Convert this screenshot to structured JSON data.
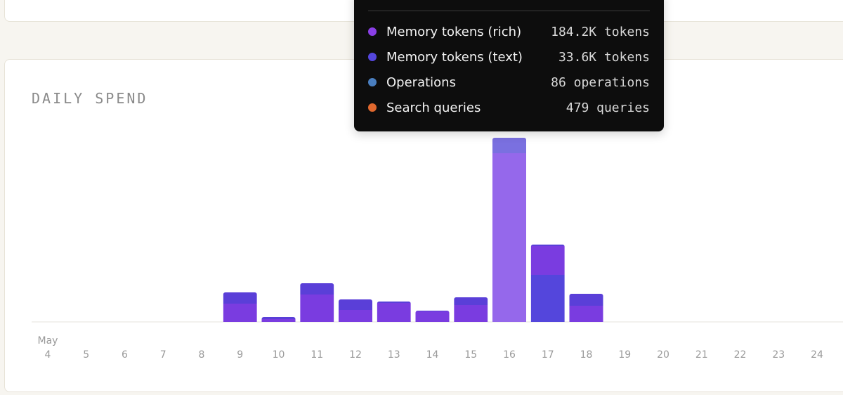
{
  "chart_data": {
    "type": "bar",
    "title": "DAILY SPEND",
    "month_label": "May",
    "categories": [
      "4",
      "5",
      "6",
      "7",
      "8",
      "9",
      "10",
      "11",
      "12",
      "13",
      "14",
      "15",
      "16",
      "17",
      "18",
      "19",
      "20",
      "21",
      "22",
      "23",
      "24"
    ],
    "series": [
      {
        "name": "Memory tokens (text)",
        "color": "#5446dc",
        "values": [
          0,
          0,
          0,
          0,
          0,
          0,
          0,
          0,
          0,
          0,
          0,
          0,
          0,
          67,
          0,
          0,
          0,
          0,
          0,
          0,
          0
        ]
      },
      {
        "name": "Memory tokens (rich)",
        "color": "#7a3ce0",
        "values": [
          0,
          0,
          0,
          0,
          0,
          26,
          4,
          39,
          17,
          27,
          15,
          24,
          240,
          41,
          23,
          0,
          0,
          0,
          0,
          0,
          0
        ]
      },
      {
        "name": "Operations",
        "color": "#5a3fd8",
        "values": [
          0,
          0,
          0,
          0,
          0,
          16,
          3,
          16,
          15,
          2,
          1,
          11,
          22,
          2,
          17,
          0,
          0,
          0,
          0,
          0,
          0
        ]
      },
      {
        "name": "Search queries",
        "color": "#e0682e",
        "values": [
          0,
          0,
          0,
          0,
          0,
          0,
          0,
          0,
          0,
          0,
          0,
          0,
          0,
          0,
          0,
          0,
          0,
          0,
          0,
          0,
          0
        ]
      }
    ],
    "highlight_index": 12,
    "highlight_color": "#9568eb",
    "ylim": [
      0,
      270
    ],
    "grid": false,
    "legend": "none"
  },
  "tooltip": {
    "rows": [
      {
        "label": "Memory tokens (rich)",
        "value": "184.2K tokens",
        "color": "#8a3fe6"
      },
      {
        "label": "Memory tokens (text)",
        "value": "33.6K tokens",
        "color": "#5446dc"
      },
      {
        "label": "Operations",
        "value": "86 operations",
        "color": "#4a7fc0"
      },
      {
        "label": "Search queries",
        "value": "479 queries",
        "color": "#e0682e"
      }
    ]
  }
}
